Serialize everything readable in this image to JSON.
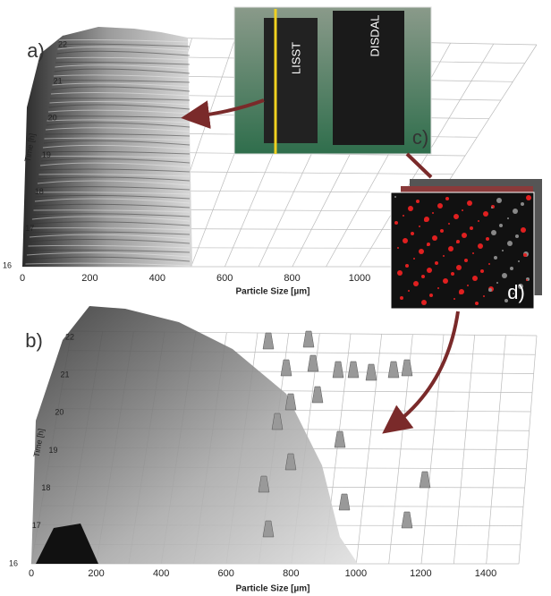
{
  "panel_a": {
    "label": "a)",
    "y_axis_label": "Time [h]",
    "x_axis_label": "Particle Size [µm]",
    "xticks": [
      0,
      200,
      400,
      600,
      800,
      1000
    ],
    "yticks": [
      16,
      17,
      18,
      19,
      20,
      21,
      22
    ]
  },
  "panel_b": {
    "label": "b)",
    "y_axis_label": "Time [h]",
    "x_axis_label": "Particle Size [µm]",
    "xticks": [
      0,
      200,
      400,
      600,
      800,
      1000,
      1200,
      1400
    ],
    "yticks": [
      16,
      17,
      18,
      19,
      20,
      21,
      22
    ]
  },
  "panel_c": {
    "label": "c)",
    "instruments": [
      "LISST",
      "DISDAL"
    ]
  },
  "panel_d": {
    "label": "d)"
  }
}
